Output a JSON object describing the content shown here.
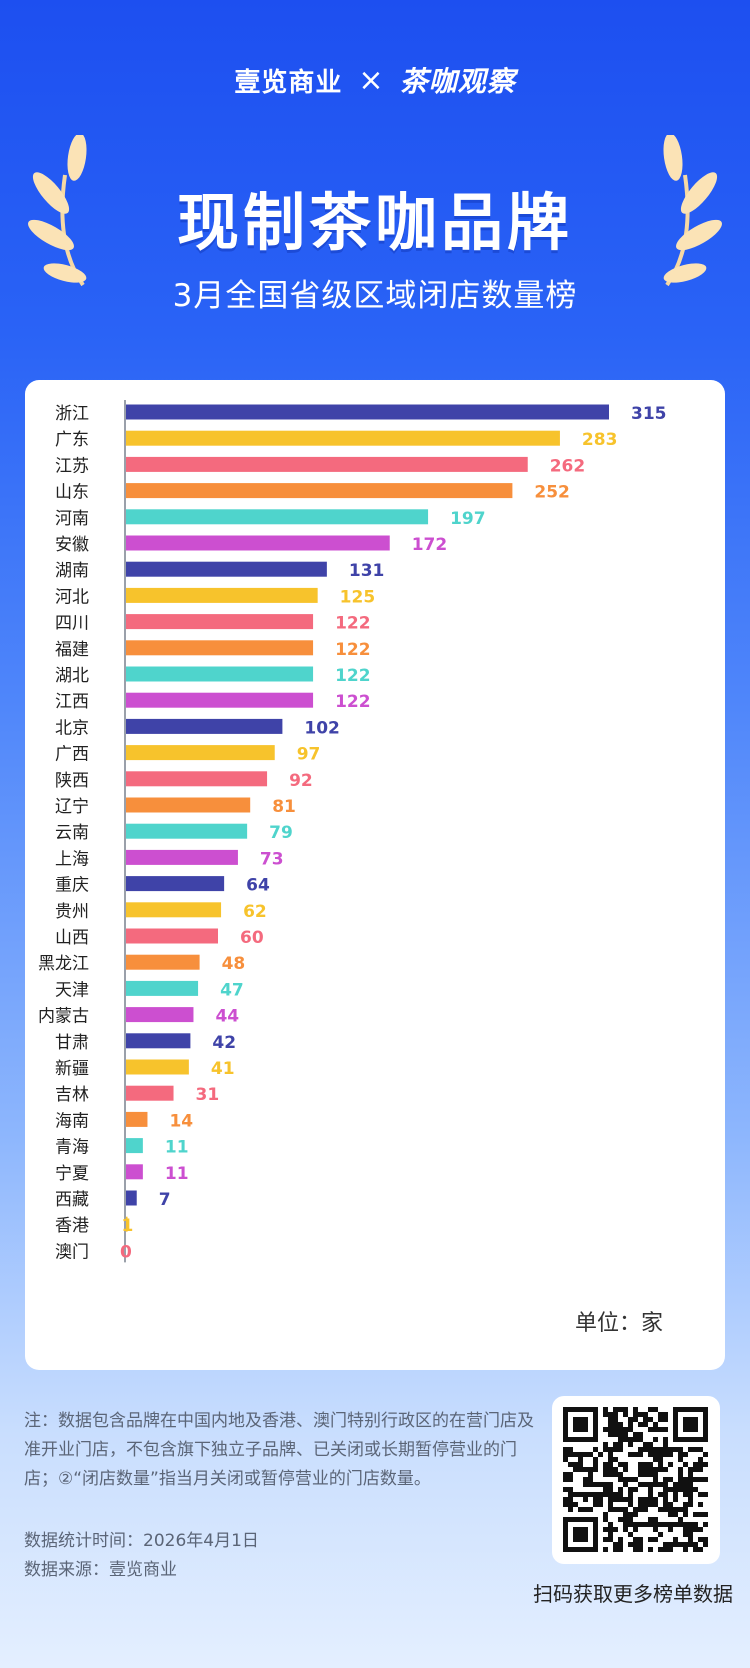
{
  "header": {
    "brand_left": "壹览商业",
    "brand_sep": "×",
    "brand_right": "茶咖观察",
    "title": "现制茶咖品牌",
    "subtitle": "3月全国省级区域闭店数量榜"
  },
  "chart_data": {
    "type": "bar",
    "orientation": "horizontal",
    "title": "现制茶咖品牌",
    "subtitle": "3月全国省级区域闭店数量榜",
    "unit_label": "单位：家",
    "xlim": [
      0,
      315
    ],
    "grid": false,
    "legend": "none",
    "categories": [
      "浙江",
      "广东",
      "江苏",
      "山东",
      "河南",
      "安徽",
      "湖南",
      "河北",
      "四川",
      "福建",
      "湖北",
      "江西",
      "北京",
      "广西",
      "陕西",
      "辽宁",
      "云南",
      "上海",
      "重庆",
      "贵州",
      "山西",
      "黑龙江",
      "天津",
      "内蒙古",
      "甘肃",
      "新疆",
      "吉林",
      "海南",
      "青海",
      "宁夏",
      "西藏",
      "香港",
      "澳门"
    ],
    "values": [
      315,
      283,
      262,
      252,
      197,
      172,
      131,
      125,
      122,
      122,
      122,
      122,
      102,
      97,
      92,
      81,
      79,
      73,
      64,
      62,
      60,
      48,
      47,
      44,
      42,
      41,
      31,
      14,
      11,
      11,
      7,
      1,
      0
    ],
    "palette": [
      "#3f43a8",
      "#f7c32c",
      "#f46a7e",
      "#f78f3c",
      "#4fd4cc",
      "#cc4fd0"
    ]
  },
  "footer": {
    "note": "注：数据包含品牌在中国内地及香港、澳门特别行政区的在营门店及准开业门店，不包含旗下独立子品牌、已关闭或长期暂停营业的门店；②“闭店数量”指当月关闭或暂停营业的门店数量。",
    "stat_time": "数据统计时间：2026年4月1日",
    "source": "数据来源：壹览商业",
    "qr_caption": "扫码获取更多榜单数据"
  }
}
